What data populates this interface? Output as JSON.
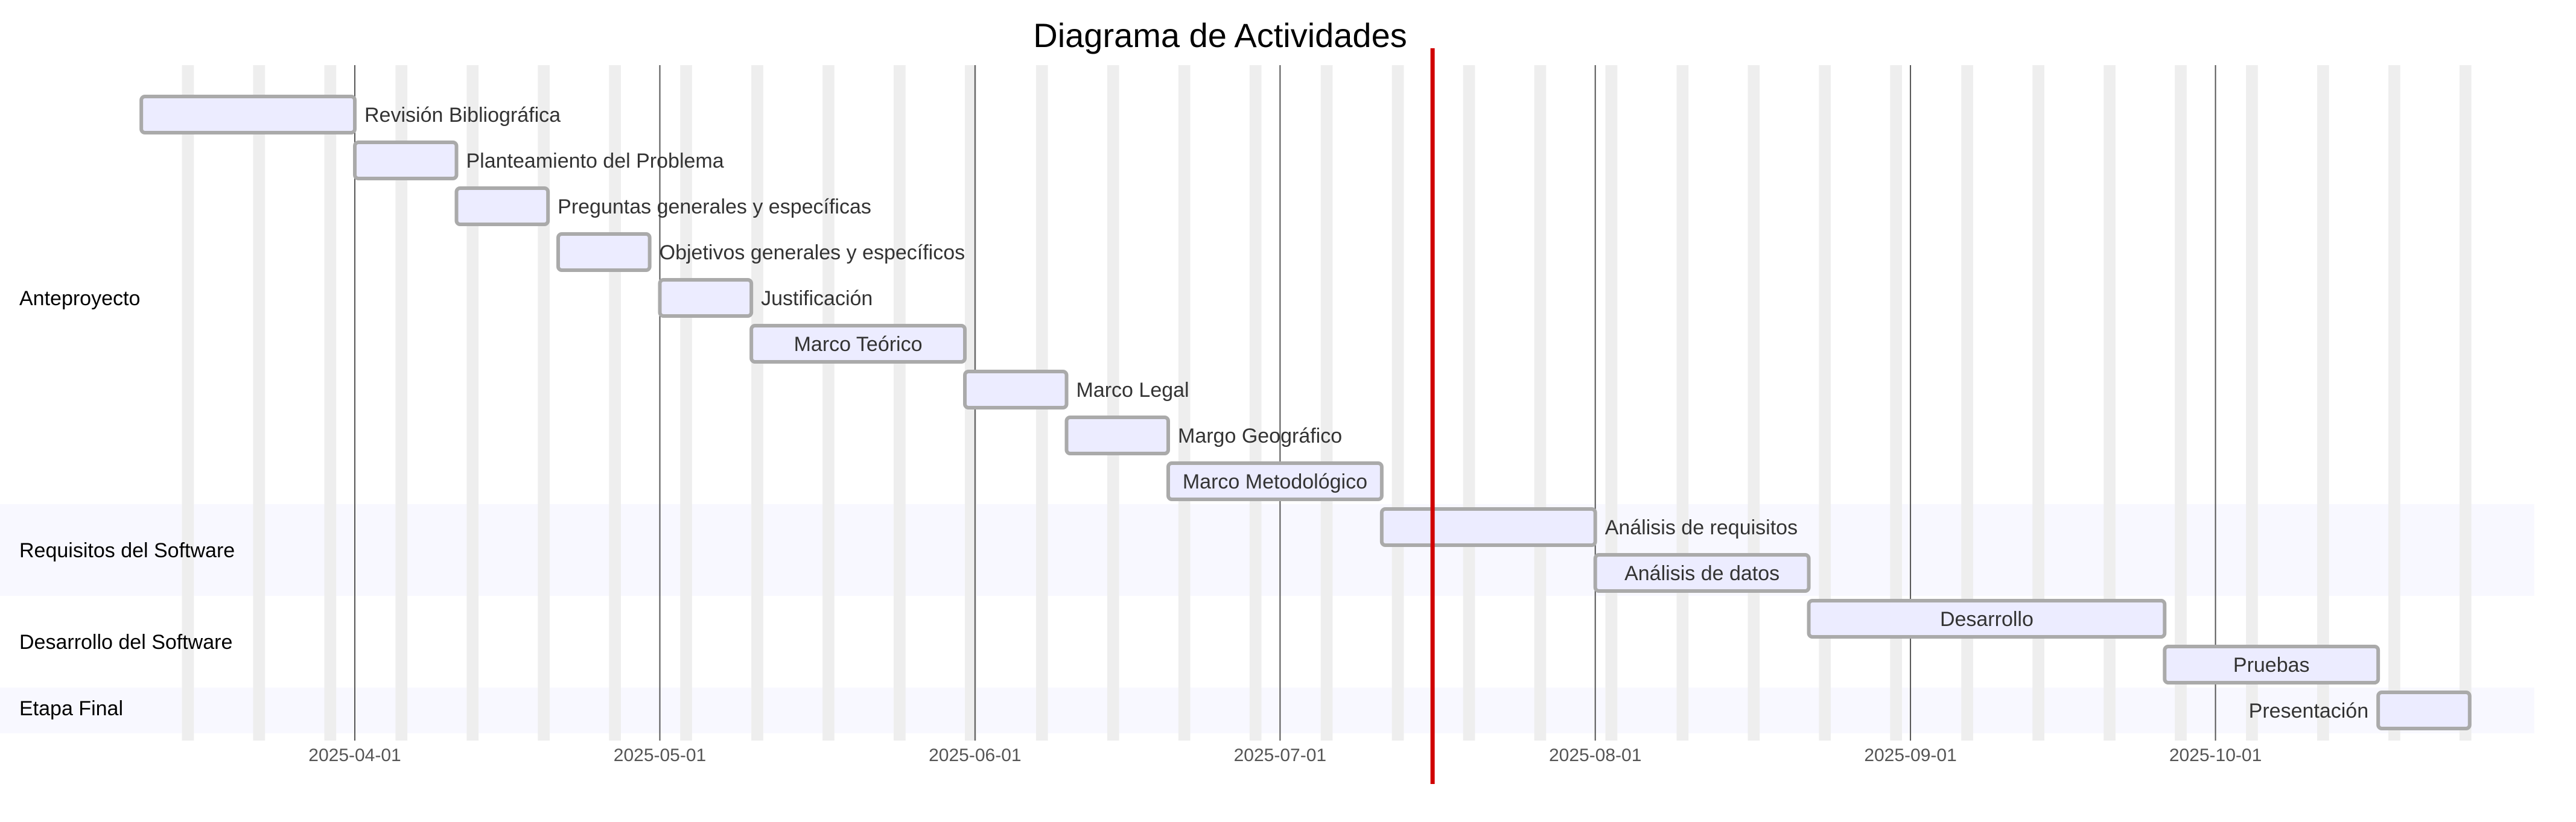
{
  "chart_data": {
    "type": "gantt",
    "title": "Diagrama de Actividades",
    "x_range": [
      "2025-03-11",
      "2025-10-31"
    ],
    "x_ticks": [
      "2025-04-01",
      "2025-05-01",
      "2025-06-01",
      "2025-07-01",
      "2025-08-01",
      "2025-09-01",
      "2025-10-01"
    ],
    "today_marker": "2025-07-16",
    "excluded_days": "weekends",
    "colors": {
      "bar_fill": "#ececff",
      "bar_stroke": "#aaaaaa",
      "today_line": "#d00000",
      "weekend_band": "#eeeeee",
      "grid_line": "#555555",
      "alt_section_band": "#f8f8ff"
    },
    "sections": [
      {
        "name": "Anteproyecto",
        "first_task": 0,
        "last_task": 8
      },
      {
        "name": "Requisitos del Software",
        "first_task": 9,
        "last_task": 10
      },
      {
        "name": "Desarrollo del Software",
        "first_task": 11,
        "last_task": 12
      },
      {
        "name": "Etapa Final",
        "first_task": 13,
        "last_task": 13
      }
    ],
    "tasks": [
      {
        "name": "Revisión Bibliográfica",
        "start": "2025-03-11",
        "end": "2025-04-01"
      },
      {
        "name": "Planteamiento del Problema",
        "start": "2025-04-01",
        "end": "2025-04-11"
      },
      {
        "name": "Preguntas generales y específicas",
        "start": "2025-04-11",
        "end": "2025-04-20"
      },
      {
        "name": "Objetivos generales y específicos",
        "start": "2025-04-21",
        "end": "2025-04-30"
      },
      {
        "name": "Justificación",
        "start": "2025-05-01",
        "end": "2025-05-10"
      },
      {
        "name": "Marco Teórico",
        "start": "2025-05-10",
        "end": "2025-05-31"
      },
      {
        "name": "Marco Legal",
        "start": "2025-05-31",
        "end": "2025-06-10"
      },
      {
        "name": "Margo Geográfico",
        "start": "2025-06-10",
        "end": "2025-06-20"
      },
      {
        "name": "Marco Metodológico",
        "start": "2025-06-20",
        "end": "2025-07-11"
      },
      {
        "name": "Análisis de requisitos",
        "start": "2025-07-11",
        "end": "2025-08-01"
      },
      {
        "name": "Análisis de datos",
        "start": "2025-08-01",
        "end": "2025-08-22"
      },
      {
        "name": "Desarrollo",
        "start": "2025-08-22",
        "end": "2025-09-26"
      },
      {
        "name": "Pruebas",
        "start": "2025-09-26",
        "end": "2025-10-17"
      },
      {
        "name": "Presentación",
        "start": "2025-10-17",
        "end": "2025-10-26"
      }
    ]
  }
}
